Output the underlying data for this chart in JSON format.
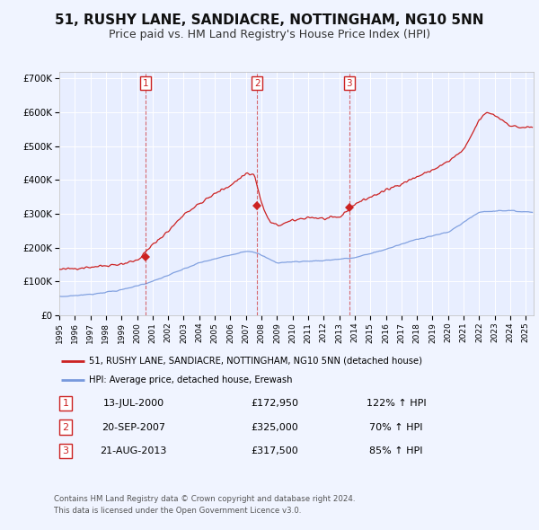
{
  "title": "51, RUSHY LANE, SANDIACRE, NOTTINGHAM, NG10 5NN",
  "subtitle": "Price paid vs. HM Land Registry's House Price Index (HPI)",
  "title_fontsize": 11,
  "subtitle_fontsize": 9,
  "background_color": "#f0f4ff",
  "plot_bg_color": "#e8eeff",
  "line_color_red": "#cc2222",
  "line_color_blue": "#7799dd",
  "grid_color": "#ffffff",
  "purchases": [
    {
      "index": 1,
      "date_label": "13-JUL-2000",
      "price": 172950,
      "hpi_pct": "122% ↑ HPI",
      "x_year": 2000.53
    },
    {
      "index": 2,
      "date_label": "20-SEP-2007",
      "price": 325000,
      "hpi_pct": "70% ↑ HPI",
      "x_year": 2007.72
    },
    {
      "index": 3,
      "date_label": "21-AUG-2013",
      "price": 317500,
      "hpi_pct": "85% ↑ HPI",
      "x_year": 2013.64
    }
  ],
  "legend_red": "51, RUSHY LANE, SANDIACRE, NOTTINGHAM, NG10 5NN (detached house)",
  "legend_blue": "HPI: Average price, detached house, Erewash",
  "footnote1": "Contains HM Land Registry data © Crown copyright and database right 2024.",
  "footnote2": "This data is licensed under the Open Government Licence v3.0.",
  "ylim": [
    0,
    720000
  ],
  "yticks": [
    0,
    100000,
    200000,
    300000,
    400000,
    500000,
    600000,
    700000
  ],
  "ytick_labels": [
    "£0",
    "£100K",
    "£200K",
    "£300K",
    "£400K",
    "£500K",
    "£600K",
    "£700K"
  ],
  "xlim_start": 1995.0,
  "xlim_end": 2025.5
}
